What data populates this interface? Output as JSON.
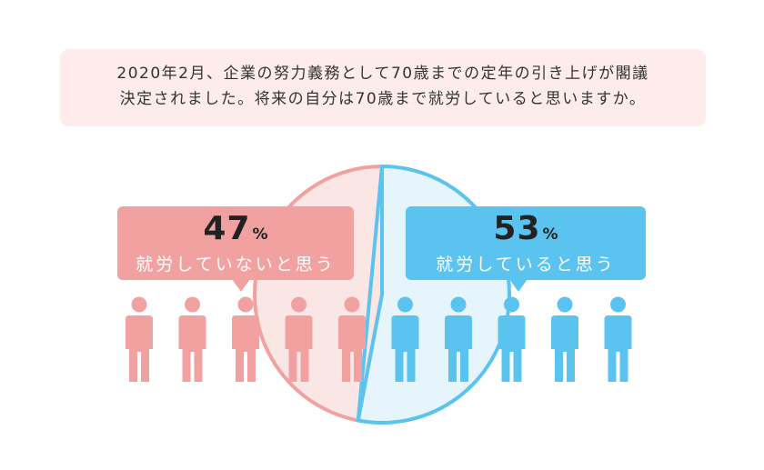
{
  "question": {
    "line1": "2020年2月、企業の努力義務として70歳までの定年の引き上げが閣議",
    "line2": "決定されました。将来の自分は70歳まで就労していると思いますか。"
  },
  "chart_data": {
    "type": "pie",
    "slices": [
      {
        "label": "就労していないと思う",
        "value": 47,
        "unit": "%",
        "color": "#f2a1a1"
      },
      {
        "label": "就労していると思う",
        "value": 53,
        "unit": "%",
        "color": "#5bc3f0"
      }
    ],
    "people_icons": {
      "total": 10,
      "colors": [
        "#f2a1a1",
        "#5bc3f0"
      ]
    }
  },
  "colors": {
    "pink": "#f2a1a1",
    "pink_light": "#fbe6e6",
    "blue": "#5bc3f0",
    "blue_light": "#e6f4fb",
    "question_bg": "#fdeceb"
  }
}
